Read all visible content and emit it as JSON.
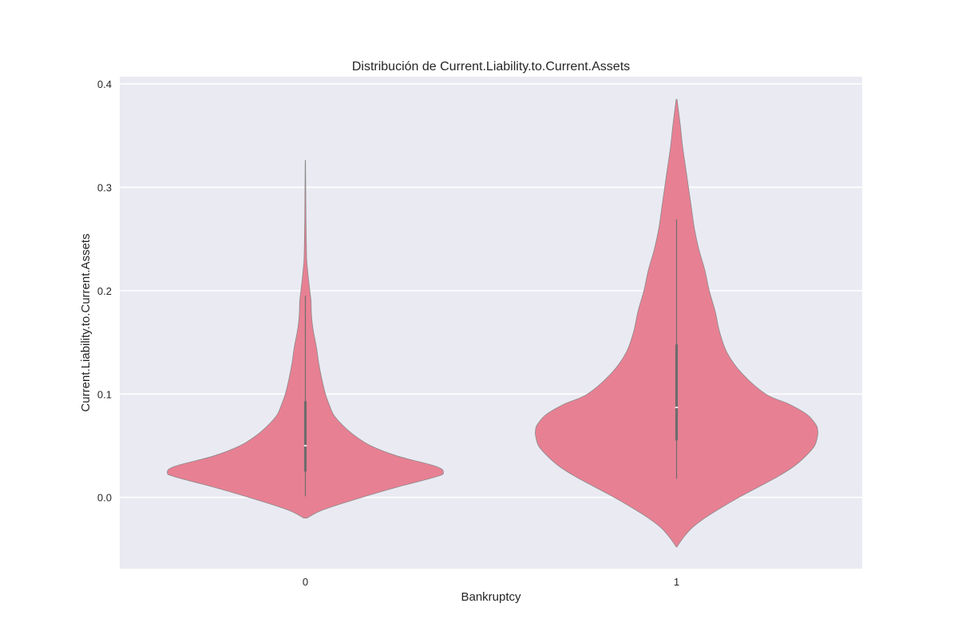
{
  "chart_data": {
    "type": "violin",
    "title": "Distribución de Current.Liability.to.Current.Assets",
    "xlabel": "Bankruptcy",
    "ylabel": "Current.Liability.to.Current.Assets",
    "categories": [
      "0",
      "1"
    ],
    "ylim": [
      -0.069,
      0.407
    ],
    "yticks": [
      0.0,
      0.1,
      0.2,
      0.3,
      0.4
    ],
    "ytick_labels": [
      "0.0",
      "0.1",
      "0.2",
      "0.3",
      "0.4"
    ],
    "grid": true,
    "legend": "none",
    "colors": {
      "violin_fill": "#e88093",
      "violin_edge": "#8a8a8a",
      "box": "#6d6d6d",
      "plot_background": "#eaeaf2",
      "grid": "#ffffff"
    },
    "violins": [
      {
        "category": "0",
        "y_min": -0.02,
        "y_max": 0.326,
        "whisker_low": 0.001,
        "q1": 0.025,
        "median": 0.05,
        "q3": 0.093,
        "whisker_high": 0.195,
        "density_y": [
          -0.02,
          -0.012,
          0.0,
          0.01,
          0.02,
          0.024,
          0.03,
          0.04,
          0.05,
          0.06,
          0.07,
          0.08,
          0.09,
          0.1,
          0.115,
          0.13,
          0.145,
          0.16,
          0.17,
          0.18,
          0.19,
          0.2,
          0.21,
          0.22,
          0.23,
          0.25,
          0.27,
          0.29,
          0.31,
          0.326
        ],
        "density_width": [
          0.01,
          0.12,
          0.38,
          0.62,
          0.88,
          0.93,
          0.88,
          0.62,
          0.44,
          0.33,
          0.25,
          0.19,
          0.16,
          0.135,
          0.11,
          0.09,
          0.075,
          0.055,
          0.045,
          0.04,
          0.038,
          0.03,
          0.022,
          0.015,
          0.009,
          0.006,
          0.004,
          0.003,
          0.002,
          0.001
        ]
      },
      {
        "category": "1",
        "y_min": -0.048,
        "y_max": 0.385,
        "whisker_low": 0.018,
        "q1": 0.055,
        "median": 0.087,
        "q3": 0.148,
        "whisker_high": 0.269,
        "density_y": [
          -0.048,
          -0.04,
          -0.03,
          -0.02,
          -0.01,
          0.0,
          0.01,
          0.02,
          0.03,
          0.04,
          0.05,
          0.06,
          0.065,
          0.07,
          0.08,
          0.09,
          0.1,
          0.12,
          0.14,
          0.16,
          0.18,
          0.2,
          0.22,
          0.24,
          0.26,
          0.28,
          0.3,
          0.32,
          0.34,
          0.36,
          0.385
        ],
        "density_width": [
          0.002,
          0.04,
          0.1,
          0.19,
          0.3,
          0.42,
          0.55,
          0.68,
          0.79,
          0.87,
          0.93,
          0.95,
          0.95,
          0.94,
          0.88,
          0.76,
          0.6,
          0.44,
          0.34,
          0.29,
          0.26,
          0.22,
          0.19,
          0.15,
          0.12,
          0.1,
          0.08,
          0.06,
          0.04,
          0.025,
          0.003
        ]
      }
    ]
  }
}
